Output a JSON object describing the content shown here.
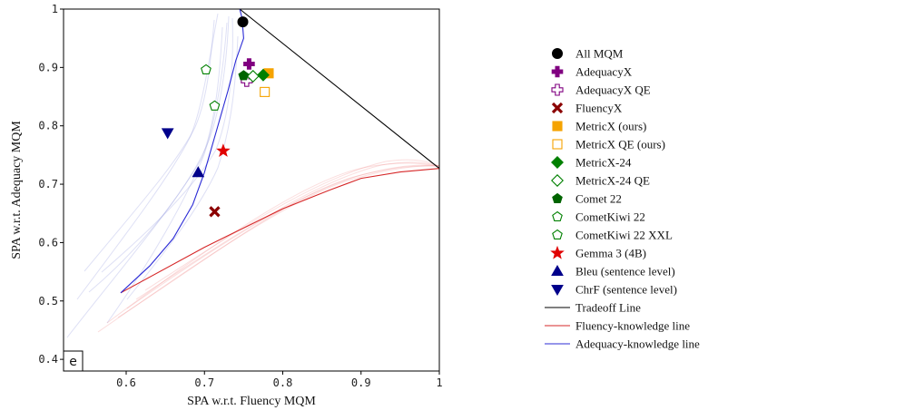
{
  "chart_data": {
    "type": "scatter",
    "panel_label": "e",
    "xlabel": "SPA w.r.t. Fluency MQM",
    "ylabel": "SPA w.r.t. Adequacy MQM",
    "xlim": [
      0.52,
      1.0
    ],
    "ylim": [
      0.38,
      1.0
    ],
    "x_ticks": [
      {
        "v": 0.6,
        "label": "0.6"
      },
      {
        "v": 0.7,
        "label": "0.7"
      },
      {
        "v": 0.8,
        "label": "0.8"
      },
      {
        "v": 0.9,
        "label": "0.9"
      },
      {
        "v": 1.0,
        "label": "1"
      }
    ],
    "y_ticks": [
      {
        "v": 0.4,
        "label": "0.4"
      },
      {
        "v": 0.5,
        "label": "0.5"
      },
      {
        "v": 0.6,
        "label": "0.6"
      },
      {
        "v": 0.7,
        "label": "0.7"
      },
      {
        "v": 0.8,
        "label": "0.8"
      },
      {
        "v": 0.9,
        "label": "0.9"
      },
      {
        "v": 1.0,
        "label": "1"
      }
    ],
    "grid": false,
    "legend_position": "right",
    "points": [
      {
        "name": "All MQM",
        "x": 0.749,
        "y": 0.978,
        "marker": "circle",
        "color": "#000000",
        "filled": true
      },
      {
        "name": "AdequacyX",
        "x": 0.757,
        "y": 0.906,
        "marker": "plus",
        "color": "#800080",
        "filled": true
      },
      {
        "name": "AdequacyX QE",
        "x": 0.754,
        "y": 0.877,
        "marker": "plus",
        "color": "#800080",
        "filled": false
      },
      {
        "name": "FluencyX",
        "x": 0.713,
        "y": 0.653,
        "marker": "x",
        "color": "#8b0000",
        "filled": true
      },
      {
        "name": "MetricX (ours)",
        "x": 0.782,
        "y": 0.89,
        "marker": "square",
        "color": "#f5a300",
        "filled": true
      },
      {
        "name": "MetricX QE (ours)",
        "x": 0.777,
        "y": 0.858,
        "marker": "square",
        "color": "#f5a300",
        "filled": false
      },
      {
        "name": "MetricX-24",
        "x": 0.775,
        "y": 0.887,
        "marker": "diamond",
        "color": "#008000",
        "filled": true
      },
      {
        "name": "MetricX-24 QE",
        "x": 0.762,
        "y": 0.885,
        "marker": "diamond",
        "color": "#008000",
        "filled": false
      },
      {
        "name": "Comet 22",
        "x": 0.75,
        "y": 0.886,
        "marker": "pentagon",
        "color": "#006400",
        "filled": true
      },
      {
        "name": "CometKiwi 22",
        "x": 0.713,
        "y": 0.834,
        "marker": "pentagon",
        "color": "#008000",
        "filled": false
      },
      {
        "name": "CometKiwi 22 XXL",
        "x": 0.702,
        "y": 0.896,
        "marker": "pentagon",
        "color": "#008000",
        "filled": false
      },
      {
        "name": "Gemma 3 (4B)",
        "x": 0.724,
        "y": 0.757,
        "marker": "star",
        "color": "#e00000",
        "filled": true
      },
      {
        "name": "Bleu (sentence level)",
        "x": 0.692,
        "y": 0.72,
        "marker": "triangle-up",
        "color": "#00008b",
        "filled": true
      },
      {
        "name": "ChrF (sentence level)",
        "x": 0.653,
        "y": 0.788,
        "marker": "triangle-down",
        "color": "#00008b",
        "filled": true
      }
    ],
    "lines": [
      {
        "name": "Tradeoff Line",
        "color": "#000000",
        "points": [
          [
            0.745,
            1.0
          ],
          [
            1.0,
            0.727
          ]
        ]
      },
      {
        "name": "Fluency-knowledge line",
        "color": "#d62728",
        "points": [
          [
            0.593,
            0.514
          ],
          [
            0.7,
            0.592
          ],
          [
            0.8,
            0.658
          ],
          [
            0.86,
            0.69
          ],
          [
            0.9,
            0.71
          ],
          [
            0.95,
            0.721
          ],
          [
            1.0,
            0.727
          ]
        ]
      },
      {
        "name": "Adequacy-knowledge line",
        "color": "#2b2bd6",
        "points": [
          [
            0.593,
            0.514
          ],
          [
            0.63,
            0.56
          ],
          [
            0.66,
            0.607
          ],
          [
            0.685,
            0.665
          ],
          [
            0.7,
            0.72
          ],
          [
            0.715,
            0.79
          ],
          [
            0.73,
            0.86
          ],
          [
            0.74,
            0.912
          ],
          [
            0.75,
            0.95
          ],
          [
            0.748,
            0.985
          ],
          [
            0.745,
            1.0
          ]
        ]
      }
    ],
    "legend": [
      {
        "label": "All MQM",
        "marker": "circle",
        "color": "#000000",
        "filled": true
      },
      {
        "label": "AdequacyX",
        "marker": "plus",
        "color": "#800080",
        "filled": true
      },
      {
        "label": "AdequacyX QE",
        "marker": "plus",
        "color": "#800080",
        "filled": false
      },
      {
        "label": "FluencyX",
        "marker": "x",
        "color": "#8b0000",
        "filled": true
      },
      {
        "label": "MetricX (ours)",
        "marker": "square",
        "color": "#f5a300",
        "filled": true
      },
      {
        "label": "MetricX QE (ours)",
        "marker": "square",
        "color": "#f5a300",
        "filled": false
      },
      {
        "label": "MetricX-24",
        "marker": "diamond",
        "color": "#008000",
        "filled": true
      },
      {
        "label": "MetricX-24 QE",
        "marker": "diamond",
        "color": "#008000",
        "filled": false
      },
      {
        "label": "Comet 22",
        "marker": "pentagon",
        "color": "#006400",
        "filled": true
      },
      {
        "label": "CometKiwi 22",
        "marker": "pentagon",
        "color": "#008000",
        "filled": false
      },
      {
        "label": "CometKiwi 22 XXL",
        "marker": "pentagon",
        "color": "#008000",
        "filled": false
      },
      {
        "label": "Gemma 3 (4B)",
        "marker": "star",
        "color": "#e00000",
        "filled": true
      },
      {
        "label": "Bleu (sentence level)",
        "marker": "triangle-up",
        "color": "#00008b",
        "filled": true
      },
      {
        "label": "ChrF (sentence level)",
        "marker": "triangle-down",
        "color": "#00008b",
        "filled": true
      },
      {
        "label": "Tradeoff Line",
        "marker": "line",
        "color": "#000000",
        "filled": true
      },
      {
        "label": "Fluency-knowledge line",
        "marker": "line",
        "color": "#d62728",
        "filled": true
      },
      {
        "label": "Adequacy-knowledge line",
        "marker": "line",
        "color": "#2b2bd6",
        "filled": true
      }
    ]
  }
}
